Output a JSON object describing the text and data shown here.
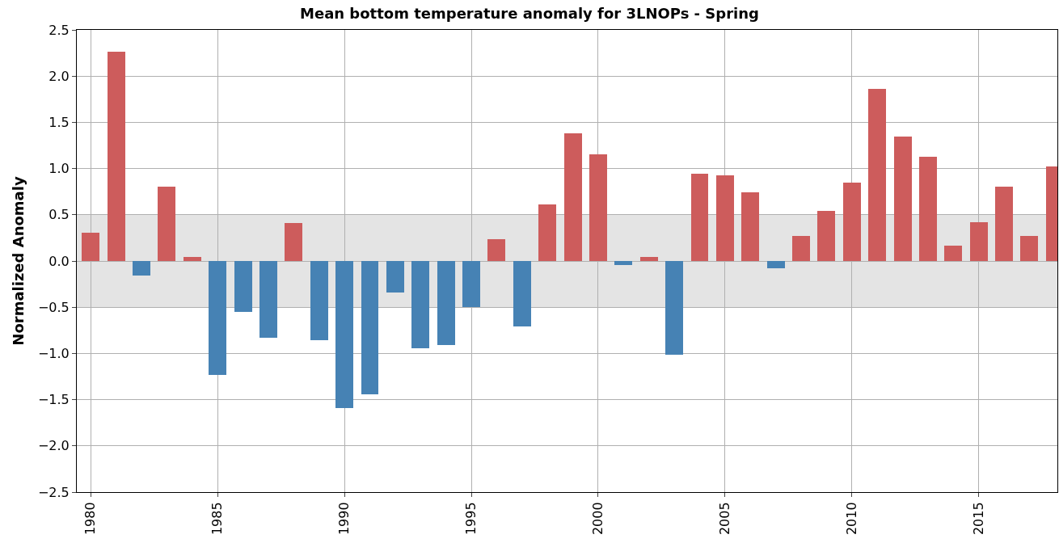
{
  "chart_data": {
    "type": "bar",
    "title": "Mean bottom temperature anomaly for 3LNOPs - Spring",
    "ylabel": "Normalized Anomaly",
    "x": [
      1980,
      1981,
      1982,
      1983,
      1984,
      1985,
      1986,
      1987,
      1988,
      1989,
      1990,
      1991,
      1992,
      1993,
      1994,
      1995,
      1996,
      1997,
      1998,
      1999,
      2000,
      2001,
      2002,
      2003,
      2004,
      2005,
      2006,
      2007,
      2008,
      2009,
      2010,
      2011,
      2012,
      2013,
      2014,
      2015,
      2016,
      2017,
      2018
    ],
    "values": [
      0.31,
      2.26,
      -0.16,
      0.8,
      0.04,
      -1.23,
      -0.55,
      -0.83,
      0.41,
      -0.86,
      -1.59,
      -1.44,
      -0.34,
      -0.94,
      -0.91,
      -0.5,
      0.24,
      -0.71,
      0.61,
      1.38,
      1.15,
      -0.04,
      0.04,
      -1.01,
      0.94,
      0.93,
      0.74,
      -0.08,
      0.27,
      0.54,
      0.85,
      1.86,
      1.35,
      1.13,
      0.17,
      0.42,
      0.8,
      0.27,
      1.02
    ],
    "colors": [
      "#cd5c5c",
      "#cd5c5c",
      "#4682b4",
      "#cd5c5c",
      "#cd5c5c",
      "#4682b4",
      "#4682b4",
      "#4682b4",
      "#cd5c5c",
      "#4682b4",
      "#4682b4",
      "#4682b4",
      "#4682b4",
      "#4682b4",
      "#4682b4",
      "#4682b4",
      "#cd5c5c",
      "#4682b4",
      "#cd5c5c",
      "#cd5c5c",
      "#cd5c5c",
      "#4682b4",
      "#cd5c5c",
      "#4682b4",
      "#cd5c5c",
      "#cd5c5c",
      "#cd5c5c",
      "#4682b4",
      "#cd5c5c",
      "#cd5c5c",
      "#cd5c5c",
      "#cd5c5c",
      "#cd5c5c",
      "#cd5c5c",
      "#cd5c5c",
      "#cd5c5c",
      "#cd5c5c",
      "#cd5c5c",
      "#cd5c5c"
    ],
    "bands": [
      {
        "axis": "y",
        "from": -0.5,
        "to": 0.5,
        "color": "#e4e4e4"
      }
    ],
    "xlim": [
      1979.45,
      2018.1
    ],
    "xticks": [
      1980,
      1985,
      1990,
      1995,
      2000,
      2005,
      2010,
      2015
    ],
    "ylim": [
      -2.5,
      2.5
    ],
    "yticks": [
      {
        "value": -2.5,
        "label": "−2.5"
      },
      {
        "value": -2,
        "label": "−2.0"
      },
      {
        "value": -1.5,
        "label": "−1.5"
      },
      {
        "value": -1,
        "label": "−1.0"
      },
      {
        "value": -0.5,
        "label": "−0.5"
      },
      {
        "value": 0,
        "label": "0.0"
      },
      {
        "value": 0.5,
        "label": "0.5"
      },
      {
        "value": 1,
        "label": "1.0"
      },
      {
        "value": 1.5,
        "label": "1.5"
      },
      {
        "value": 2,
        "label": "2.0"
      },
      {
        "value": 2.5,
        "label": "2.5"
      }
    ],
    "grid": true
  }
}
